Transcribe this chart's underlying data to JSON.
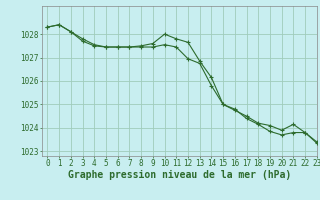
{
  "title": "",
  "xlabel": "Graphe pression niveau de la mer (hPa)",
  "xlim": [
    -0.5,
    23
  ],
  "ylim": [
    1022.8,
    1029.2
  ],
  "yticks": [
    1023,
    1024,
    1025,
    1026,
    1027,
    1028
  ],
  "xticks": [
    0,
    1,
    2,
    3,
    4,
    5,
    6,
    7,
    8,
    9,
    10,
    11,
    12,
    13,
    14,
    15,
    16,
    17,
    18,
    19,
    20,
    21,
    22,
    23
  ],
  "bg_color": "#c8eef0",
  "grid_color": "#a0ccbb",
  "line_color": "#2d6b2d",
  "line1_x": [
    0,
    1,
    2,
    3,
    4,
    5,
    6,
    7,
    8,
    9,
    10,
    11,
    12,
    13,
    14,
    15,
    16,
    17,
    18,
    19,
    20,
    21,
    22,
    23
  ],
  "line1_y": [
    1028.3,
    1028.4,
    1028.1,
    1027.8,
    1027.55,
    1027.45,
    1027.45,
    1027.45,
    1027.5,
    1027.6,
    1028.0,
    1027.8,
    1027.65,
    1026.85,
    1026.15,
    1025.0,
    1024.8,
    1024.4,
    1024.15,
    1023.85,
    1023.7,
    1023.8,
    1023.8,
    1023.4
  ],
  "line2_x": [
    0,
    1,
    2,
    3,
    4,
    5,
    6,
    7,
    8,
    9,
    10,
    11,
    12,
    13,
    14,
    15,
    16,
    17,
    18,
    19,
    20,
    21,
    22,
    23
  ],
  "line2_y": [
    1028.3,
    1028.4,
    1028.1,
    1027.7,
    1027.5,
    1027.45,
    1027.45,
    1027.45,
    1027.45,
    1027.45,
    1027.55,
    1027.45,
    1026.95,
    1026.75,
    1025.8,
    1025.0,
    1024.75,
    1024.5,
    1024.2,
    1024.1,
    1023.9,
    1024.15,
    1023.8,
    1023.35
  ],
  "marker": "+",
  "marker_size": 3,
  "line_width": 0.8,
  "xlabel_fontsize": 7,
  "tick_fontsize": 5.5,
  "tick_color": "#2d6b2d",
  "xlabel_color": "#2d6b2d",
  "xlabel_bold": true
}
